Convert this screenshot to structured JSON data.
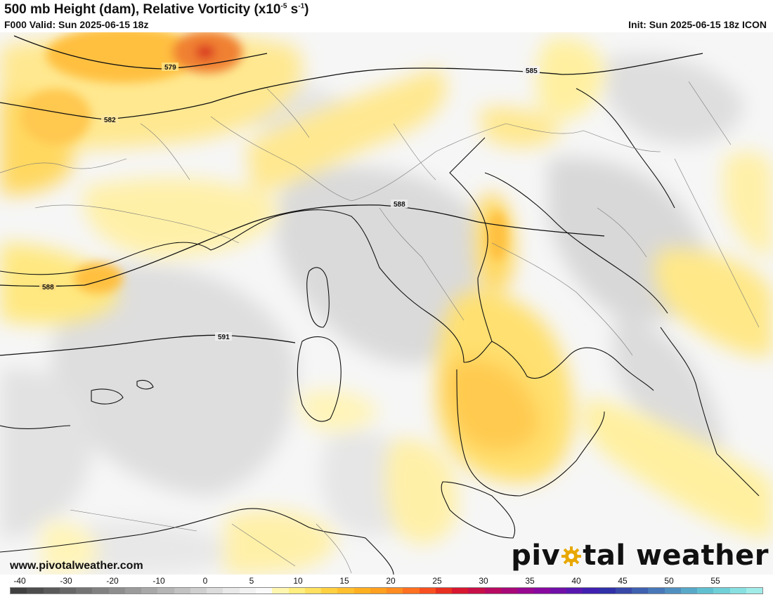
{
  "header": {
    "title_main": "500 mb Height (dam), Relative Vorticity (x10",
    "title_sup1": "-5",
    "title_mid": " s",
    "title_sup2": "-1",
    "title_end": ")",
    "valid": "F000 Valid: Sun 2025-06-15 18z",
    "init": "Init: Sun 2025-06-15 18z ICON"
  },
  "contours": {
    "labels": [
      "579",
      "582",
      "585",
      "588",
      "588",
      "591"
    ]
  },
  "footer": {
    "url": "www.pivotalweather.com",
    "logo_left": "piv",
    "logo_right": "tal weather",
    "logo_icon": "gear-icon"
  },
  "colorbar": {
    "ticks": [
      "-40",
      "-30",
      "-20",
      "-10",
      "0",
      "5",
      "10",
      "15",
      "20",
      "25",
      "30",
      "35",
      "40",
      "45",
      "50",
      "55"
    ],
    "colors": [
      "#404040",
      "#4d4d4d",
      "#5a5a5a",
      "#676767",
      "#747474",
      "#818181",
      "#8e8e8e",
      "#9b9b9b",
      "#a8a8a8",
      "#b5b5b5",
      "#c2c2c2",
      "#cfcfcf",
      "#dcdcdc",
      "#e9e9e9",
      "#f2f2f2",
      "#fafafa",
      "#fff7b0",
      "#ffee80",
      "#ffe060",
      "#ffd040",
      "#ffc030",
      "#ffb020",
      "#ffa020",
      "#ff8c20",
      "#ff7020",
      "#f85020",
      "#e83020",
      "#d81830",
      "#c81048",
      "#b80a60",
      "#a80878",
      "#980890",
      "#8808a0",
      "#7010a8",
      "#5818b0",
      "#4020b0",
      "#3030a8",
      "#3848a8",
      "#4060b0",
      "#4878b8",
      "#5090c0",
      "#58a8c8",
      "#60c0d0",
      "#70d0d8",
      "#88e0e0",
      "#a0ece8"
    ]
  }
}
